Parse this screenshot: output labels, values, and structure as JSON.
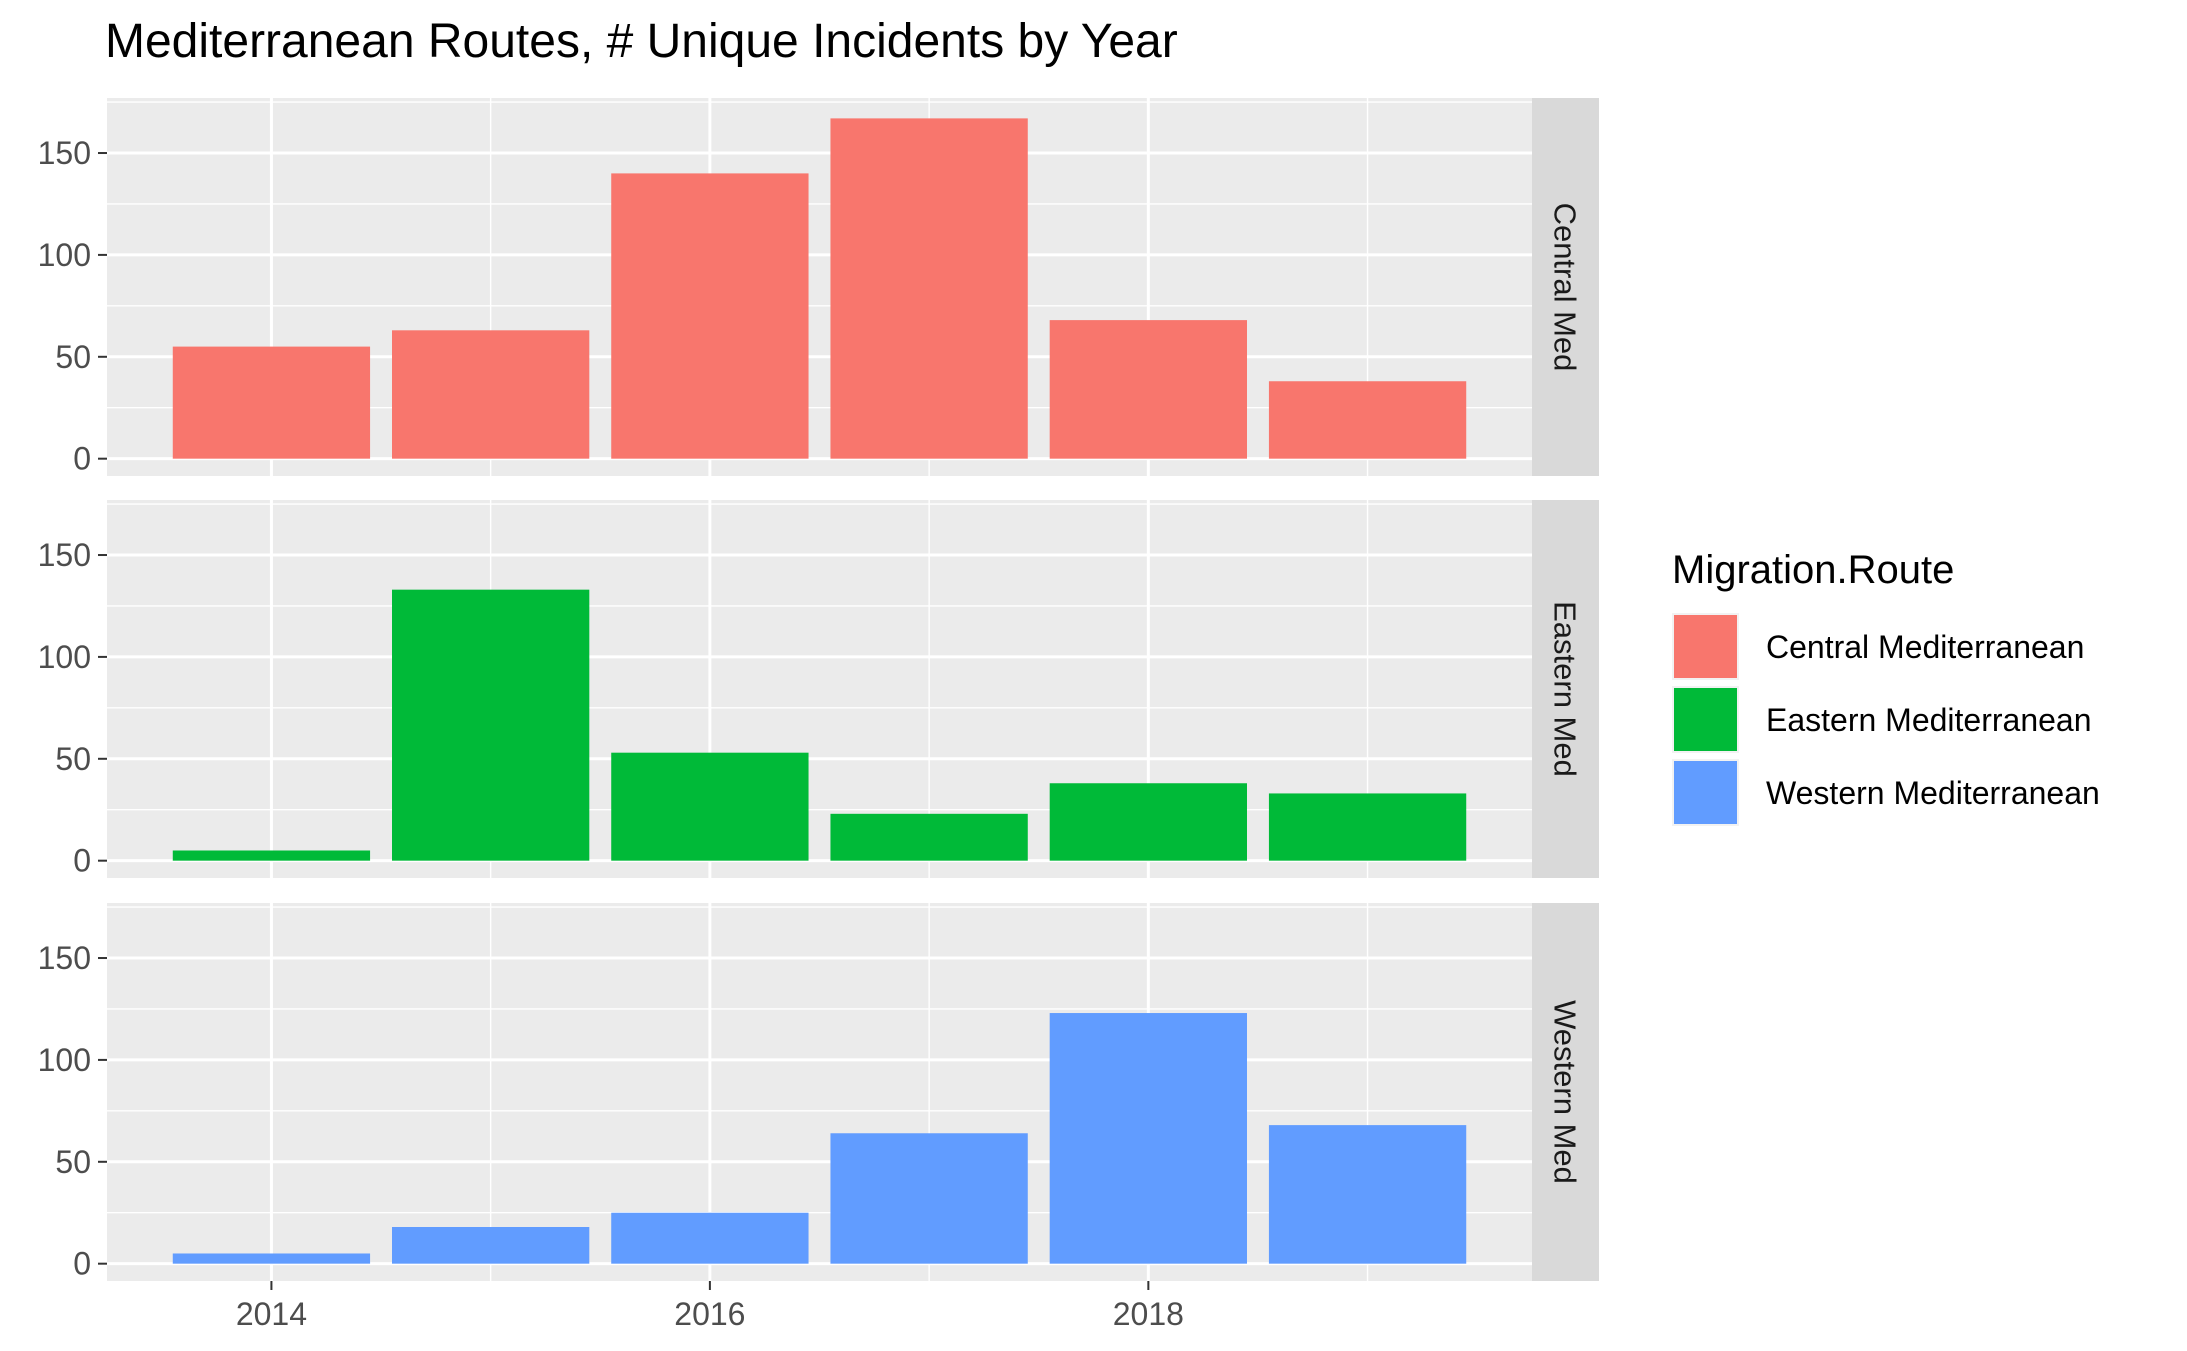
{
  "chart_data": {
    "type": "bar",
    "title": "Mediterranean Routes, # Unique Incidents by Year",
    "xlabel": "",
    "ylabel": "",
    "categories": [
      2014,
      2015,
      2016,
      2017,
      2018,
      2019
    ],
    "x_ticks": [
      2014,
      2016,
      2018
    ],
    "xlim": [
      2013.25,
      2019.75
    ],
    "ylim": [
      -8.5,
      177
    ],
    "y_ticks": [
      0,
      50,
      100,
      150
    ],
    "grid": true,
    "facet": "rows",
    "panels": [
      {
        "strip": "Central Med",
        "series": "Central Mediterranean",
        "values": [
          55,
          63,
          140,
          167,
          68,
          38
        ]
      },
      {
        "strip": "Eastern Med",
        "series": "Eastern Mediterranean",
        "values": [
          5,
          133,
          53,
          23,
          38,
          33
        ]
      },
      {
        "strip": "Western Med",
        "series": "Western Mediterranean",
        "values": [
          5,
          18,
          25,
          64,
          123,
          68
        ]
      }
    ],
    "legend": {
      "title": "Migration.Route",
      "position": "right",
      "entries": [
        {
          "name": "Central Mediterranean",
          "color": "#F8766D"
        },
        {
          "name": "Eastern Mediterranean",
          "color": "#00BA38"
        },
        {
          "name": "Western Mediterranean",
          "color": "#619CFF"
        }
      ]
    },
    "colors": {
      "panel_bg": "#EBEBEB",
      "grid": "#FFFFFF",
      "strip_bg": "#D9D9D9",
      "axis_text": "#4D4D4D"
    }
  }
}
